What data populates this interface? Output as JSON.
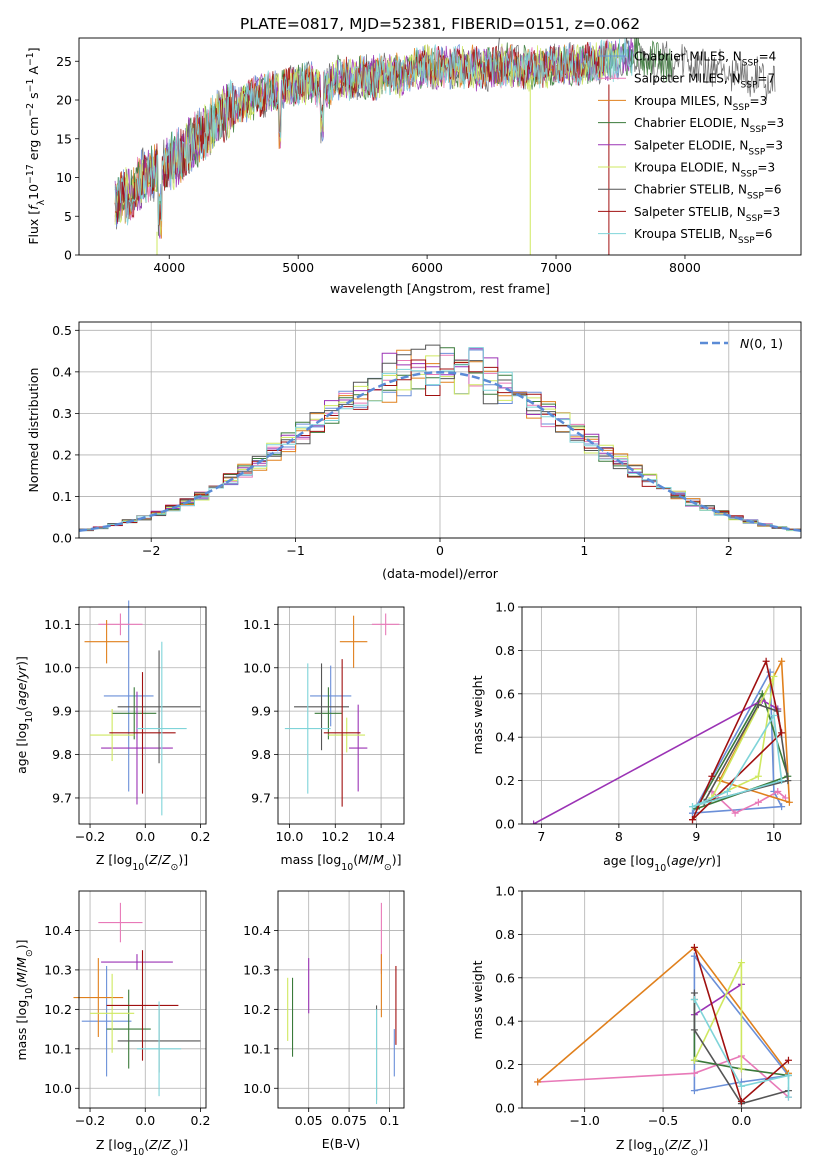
{
  "figure_title": "PLATE=0817, MJD=52381, FIBERID=0151, z=0.062",
  "colors": {
    "chabrier_miles": "#6a8fd8",
    "salpeter_miles": "#e879b8",
    "kroupa_miles": "#e0801d",
    "chabrier_elodie": "#3a7a3a",
    "salpeter_elodie": "#9b33b5",
    "kroupa_elodie": "#cfe860",
    "chabrier_stelib": "#555555",
    "salpeter_stelib": "#a01010",
    "kroupa_stelib": "#7fd4d9",
    "normal": "#5b8bd6"
  },
  "chart_data": [
    {
      "id": "spectrum",
      "type": "line",
      "title": "PLATE=0817, MJD=52381, FIBERID=0151, z=0.062",
      "xlabel": "wavelength [Angstrom, rest frame]",
      "ylabel": "Flux [fλ10⁻¹⁷ erg cm⁻² s⁻¹ A⁻¹]",
      "xlim": [
        3300,
        8900
      ],
      "ylim": [
        0,
        28
      ],
      "xticks": [
        4000,
        5000,
        6000,
        7000,
        8000
      ],
      "yticks": [
        0,
        5,
        10,
        15,
        20,
        25
      ],
      "x": [
        3600,
        3700,
        3800,
        3900,
        4000,
        4100,
        4200,
        4300,
        4400,
        4500,
        4600,
        4700,
        4800,
        4900,
        5000,
        5100,
        5200,
        5300,
        5400,
        5500,
        5600,
        5700,
        5800,
        5900,
        6000,
        6100,
        6200,
        6300,
        6400,
        6500,
        6600,
        6700,
        6800,
        6900,
        7000,
        7100,
        7200,
        7300,
        7400,
        7500,
        7600,
        7700,
        7800,
        7900,
        8000,
        8100,
        8200,
        8300,
        8400,
        8500,
        8600,
        8700
      ],
      "y": [
        7,
        8,
        10,
        11,
        12,
        13,
        15,
        16,
        18,
        19,
        20,
        20.5,
        21,
        21.5,
        22,
        22.5,
        21,
        23,
        22.5,
        23,
        22.8,
        23.5,
        23,
        24,
        24.5,
        24,
        24.2,
        24.3,
        24,
        24,
        24.5,
        24.3,
        24,
        24.3,
        24.5,
        24.7,
        24.5,
        25,
        25,
        25.5,
        25.8,
        25.2,
        25,
        24.5,
        24.5,
        24.3,
        24,
        23.8,
        23.5,
        23,
        22.8,
        22.5
      ],
      "legend": [
        {
          "label": "Chabrier MILES, N_SSP=4",
          "text": "Chabrier MILES, N",
          "sub": "SSP",
          "tail": "=4",
          "color": "#6a8fd8"
        },
        {
          "label": "Salpeter MILES, N_SSP=7",
          "text": "Salpeter MILES, N",
          "sub": "SSP",
          "tail": "=7",
          "color": "#e879b8"
        },
        {
          "label": "Kroupa MILES, N_SSP=3",
          "text": "Kroupa MILES, N",
          "sub": "SSP",
          "tail": "=3",
          "color": "#e0801d"
        },
        {
          "label": "Chabrier ELODIE, N_SSP=3",
          "text": "Chabrier ELODIE, N",
          "sub": "SSP",
          "tail": "=3",
          "color": "#3a7a3a"
        },
        {
          "label": "Salpeter ELODIE, N_SSP=3",
          "text": "Salpeter ELODIE, N",
          "sub": "SSP",
          "tail": "=3",
          "color": "#9b33b5"
        },
        {
          "label": "Kroupa ELODIE, N_SSP=3",
          "text": "Kroupa ELODIE, N",
          "sub": "SSP",
          "tail": "=3",
          "color": "#cfe860"
        },
        {
          "label": "Chabrier STELIB, N_SSP=6",
          "text": "Chabrier STELIB, N",
          "sub": "SSP",
          "tail": "=6",
          "color": "#555555"
        },
        {
          "label": "Salpeter STELIB, N_SSP=3",
          "text": "Salpeter STELIB, N",
          "sub": "SSP",
          "tail": "=3",
          "color": "#a01010"
        },
        {
          "label": "Kroupa STELIB, N_SSP=6",
          "text": "Kroupa STELIB, N",
          "sub": "SSP",
          "tail": "=6",
          "color": "#7fd4d9"
        }
      ]
    },
    {
      "id": "residuals",
      "type": "bar",
      "xlabel": "(data-model)/error",
      "ylabel": "Normed distribution",
      "xlim": [
        -2.5,
        2.5
      ],
      "ylim": [
        0,
        0.52
      ],
      "xticks": [
        -2,
        -1,
        0,
        1,
        2
      ],
      "yticks": [
        0.0,
        0.1,
        0.2,
        0.3,
        0.4,
        0.5
      ],
      "bin_width": 0.1,
      "bin_start": -2.5,
      "legend_label": "N(0,1)",
      "series_colors": [
        "#6a8fd8",
        "#e879b8",
        "#e0801d",
        "#3a7a3a",
        "#9b33b5",
        "#cfe860",
        "#555555",
        "#a01010",
        "#7fd4d9"
      ]
    },
    {
      "id": "age_vs_Z",
      "type": "scatter",
      "xlabel": "Z [log10(Z/Z⊙)]",
      "ylabel": "age [log10(age/yr)]",
      "xlim": [
        -0.24,
        0.22
      ],
      "ylim": [
        9.64,
        10.14
      ],
      "xticks": [
        -0.2,
        0.0,
        0.2
      ],
      "yticks": [
        9.7,
        9.8,
        9.9,
        10.0,
        10.1
      ],
      "points": [
        {
          "x": -0.06,
          "y": 9.935,
          "xerr": 0.09,
          "yerr": 0.22,
          "color": "#6a8fd8"
        },
        {
          "x": -0.09,
          "y": 10.1,
          "xerr": 0.08,
          "yerr": 0.025,
          "color": "#e879b8"
        },
        {
          "x": -0.14,
          "y": 10.06,
          "xerr": 0.08,
          "yerr": 0.05,
          "color": "#e0801d"
        },
        {
          "x": -0.04,
          "y": 9.895,
          "xerr": 0.08,
          "yerr": 0.06,
          "color": "#3a7a3a"
        },
        {
          "x": -0.03,
          "y": 9.815,
          "xerr": 0.13,
          "yerr": 0.13,
          "color": "#9b33b5"
        },
        {
          "x": -0.12,
          "y": 9.845,
          "xerr": 0.08,
          "yerr": 0.06,
          "color": "#cfe860"
        },
        {
          "x": 0.05,
          "y": 9.91,
          "xerr": 0.15,
          "yerr": 0.13,
          "color": "#555555"
        },
        {
          "x": -0.01,
          "y": 9.85,
          "xerr": 0.12,
          "yerr": 0.14,
          "color": "#a01010"
        },
        {
          "x": 0.06,
          "y": 9.86,
          "xerr": 0.09,
          "yerr": 0.2,
          "color": "#7fd4d9"
        }
      ]
    },
    {
      "id": "age_vs_mass",
      "type": "scatter",
      "xlabel": "mass [log10(M/M⊙)]",
      "ylabel": "",
      "xlim": [
        9.95,
        10.5
      ],
      "ylim": [
        9.64,
        10.14
      ],
      "xticks": [
        10.0,
        10.2,
        10.4
      ],
      "yticks": [
        9.7,
        9.8,
        9.9,
        10.0,
        10.1
      ],
      "points": [
        {
          "x": 10.18,
          "y": 9.935,
          "xerr": 0.09,
          "yerr": 0.07,
          "color": "#6a8fd8"
        },
        {
          "x": 10.42,
          "y": 10.1,
          "xerr": 0.06,
          "yerr": 0.025,
          "color": "#e879b8"
        },
        {
          "x": 10.28,
          "y": 10.06,
          "xerr": 0.06,
          "yerr": 0.06,
          "color": "#e0801d"
        },
        {
          "x": 10.17,
          "y": 9.895,
          "xerr": 0.06,
          "yerr": 0.06,
          "color": "#3a7a3a"
        },
        {
          "x": 10.3,
          "y": 9.815,
          "xerr": 0.04,
          "yerr": 0.1,
          "color": "#9b33b5"
        },
        {
          "x": 10.25,
          "y": 9.845,
          "xerr": 0.08,
          "yerr": 0.04,
          "color": "#cfe860"
        },
        {
          "x": 10.14,
          "y": 9.91,
          "xerr": 0.12,
          "yerr": 0.1,
          "color": "#555555"
        },
        {
          "x": 10.23,
          "y": 9.85,
          "xerr": 0.08,
          "yerr": 0.17,
          "color": "#a01010"
        },
        {
          "x": 10.08,
          "y": 9.86,
          "xerr": 0.1,
          "yerr": 0.15,
          "color": "#7fd4d9"
        }
      ]
    },
    {
      "id": "weight_vs_age",
      "type": "line",
      "xlabel": "age [log10(age/yr)]",
      "ylabel": "mass weight",
      "xlim": [
        6.75,
        10.35
      ],
      "ylim": [
        0,
        1.0
      ],
      "xticks": [
        7,
        8,
        9,
        10
      ],
      "yticks": [
        0.0,
        0.2,
        0.4,
        0.6,
        0.8,
        1.0
      ],
      "series": [
        {
          "color": "#6a8fd8",
          "x": [
            8.95,
            9.95,
            10.0,
            10.1,
            8.95
          ],
          "y": [
            0.05,
            0.7,
            0.15,
            0.08,
            0.05
          ]
        },
        {
          "color": "#e879b8",
          "x": [
            9.2,
            9.5,
            9.8,
            10.05,
            10.15
          ],
          "y": [
            0.15,
            0.05,
            0.1,
            0.15,
            0.12
          ]
        },
        {
          "color": "#e0801d",
          "x": [
            9.3,
            10.1,
            10.2,
            9.3
          ],
          "y": [
            0.2,
            0.75,
            0.1,
            0.2
          ]
        },
        {
          "color": "#3a7a3a",
          "x": [
            9.0,
            9.85,
            10.18,
            9.0
          ],
          "y": [
            0.07,
            0.6,
            0.22,
            0.07
          ]
        },
        {
          "color": "#9b33b5",
          "x": [
            6.9,
            9.85,
            10.05
          ],
          "y": [
            0.0,
            0.57,
            0.53
          ]
        },
        {
          "color": "#cfe860",
          "x": [
            9.2,
            9.8,
            10.0,
            9.2
          ],
          "y": [
            0.12,
            0.22,
            0.68,
            0.12
          ]
        },
        {
          "color": "#555555",
          "x": [
            9.1,
            9.8,
            10.05,
            10.18,
            9.1
          ],
          "y": [
            0.1,
            0.55,
            0.52,
            0.2,
            0.1
          ]
        },
        {
          "color": "#a01010",
          "x": [
            8.95,
            9.2,
            9.9,
            10.1,
            8.95
          ],
          "y": [
            0.02,
            0.22,
            0.75,
            0.42,
            0.02
          ]
        },
        {
          "color": "#7fd4d9",
          "x": [
            8.95,
            9.4,
            10.0,
            10.1,
            8.95
          ],
          "y": [
            0.08,
            0.15,
            0.5,
            0.2,
            0.08
          ]
        }
      ]
    },
    {
      "id": "mass_vs_Z",
      "type": "scatter",
      "xlabel": "Z [log10(Z/Z⊙)]",
      "ylabel": "mass [log10(M/M⊙)]",
      "xlim": [
        -0.24,
        0.22
      ],
      "ylim": [
        9.95,
        10.5
      ],
      "xticks": [
        -0.2,
        0.0,
        0.2
      ],
      "yticks": [
        10.0,
        10.1,
        10.2,
        10.3,
        10.4
      ],
      "points": [
        {
          "x": -0.14,
          "y": 10.17,
          "xerr": 0.09,
          "yerr": 0.14,
          "color": "#6a8fd8"
        },
        {
          "x": -0.09,
          "y": 10.42,
          "xerr": 0.08,
          "yerr": 0.05,
          "color": "#e879b8"
        },
        {
          "x": -0.17,
          "y": 10.23,
          "xerr": 0.09,
          "yerr": 0.1,
          "color": "#e0801d"
        },
        {
          "x": -0.06,
          "y": 10.15,
          "xerr": 0.08,
          "yerr": 0.1,
          "color": "#3a7a3a"
        },
        {
          "x": -0.03,
          "y": 10.32,
          "xerr": 0.13,
          "yerr": 0.02,
          "color": "#9b33b5"
        },
        {
          "x": -0.12,
          "y": 10.19,
          "xerr": 0.08,
          "yerr": 0.1,
          "color": "#cfe860"
        },
        {
          "x": 0.05,
          "y": 10.12,
          "xerr": 0.15,
          "yerr": 0.08,
          "color": "#555555"
        },
        {
          "x": -0.01,
          "y": 10.21,
          "xerr": 0.13,
          "yerr": 0.14,
          "color": "#a01010"
        },
        {
          "x": 0.05,
          "y": 10.1,
          "xerr": 0.08,
          "yerr": 0.12,
          "color": "#7fd4d9"
        }
      ]
    },
    {
      "id": "mass_vs_ebv",
      "type": "scatter",
      "xlabel": "E(B-V)",
      "ylabel": "",
      "xlim": [
        0.031,
        0.109
      ],
      "ylim": [
        9.95,
        10.5
      ],
      "xticks": [
        0.05,
        0.075,
        0.1
      ],
      "yticks": [
        10.0,
        10.1,
        10.2,
        10.3,
        10.4
      ],
      "points": [
        {
          "x": 0.103,
          "y": 10.09,
          "xerr": 0,
          "yerr": 0.06,
          "color": "#6a8fd8"
        },
        {
          "x": 0.095,
          "y": 10.38,
          "xerr": 0,
          "yerr": 0.09,
          "color": "#e879b8"
        },
        {
          "x": 0.095,
          "y": 10.26,
          "xerr": 0,
          "yerr": 0.08,
          "color": "#e0801d"
        },
        {
          "x": 0.04,
          "y": 10.18,
          "xerr": 0,
          "yerr": 0.1,
          "color": "#3a7a3a"
        },
        {
          "x": 0.05,
          "y": 10.26,
          "xerr": 0,
          "yerr": 0.07,
          "color": "#9b33b5"
        },
        {
          "x": 0.037,
          "y": 10.2,
          "xerr": 0,
          "yerr": 0.08,
          "color": "#cfe860"
        },
        {
          "x": 0.092,
          "y": 10.09,
          "xerr": 0,
          "yerr": 0.12,
          "color": "#555555"
        },
        {
          "x": 0.104,
          "y": 10.21,
          "xerr": 0,
          "yerr": 0.1,
          "color": "#a01010"
        },
        {
          "x": 0.092,
          "y": 10.08,
          "xerr": 0,
          "yerr": 0.12,
          "color": "#7fd4d9"
        }
      ]
    },
    {
      "id": "weight_vs_Z",
      "type": "line",
      "xlabel": "Z [log10(Z/Z⊙)]",
      "ylabel": "mass weight",
      "xlim": [
        -1.4,
        0.38
      ],
      "ylim": [
        0,
        1.0
      ],
      "xticks": [
        -1.0,
        -0.5,
        0.0
      ],
      "yticks": [
        0.0,
        0.2,
        0.4,
        0.6,
        0.8,
        1.0
      ],
      "series": [
        {
          "color": "#6a8fd8",
          "x": [
            -0.3,
            -0.3,
            0.0,
            0.3,
            -0.3
          ],
          "y": [
            0.7,
            0.08,
            0.12,
            0.15,
            0.7
          ]
        },
        {
          "color": "#e879b8",
          "x": [
            -1.3,
            -0.3,
            0.0,
            0.3
          ],
          "y": [
            0.12,
            0.16,
            0.24,
            0.05
          ]
        },
        {
          "color": "#e0801d",
          "x": [
            -1.3,
            -0.3,
            0.3
          ],
          "y": [
            0.12,
            0.74,
            0.16
          ]
        },
        {
          "color": "#3a7a3a",
          "x": [
            -0.3,
            -0.3,
            0.0,
            0.3
          ],
          "y": [
            0.5,
            0.22,
            0.18,
            0.15
          ]
        },
        {
          "color": "#9b33b5",
          "x": [
            -0.3,
            0.0
          ],
          "y": [
            0.43,
            0.57
          ]
        },
        {
          "color": "#cfe860",
          "x": [
            -0.3,
            0.0,
            0.0
          ],
          "y": [
            0.22,
            0.67,
            0.18
          ]
        },
        {
          "color": "#555555",
          "x": [
            -0.3,
            -0.3,
            0.0,
            0.3
          ],
          "y": [
            0.53,
            0.36,
            0.02,
            0.08
          ]
        },
        {
          "color": "#a01010",
          "x": [
            -0.3,
            0.0,
            0.3
          ],
          "y": [
            0.74,
            0.03,
            0.22
          ]
        },
        {
          "color": "#7fd4d9",
          "x": [
            -0.3,
            0.0,
            0.3,
            0.3
          ],
          "y": [
            0.5,
            0.1,
            0.15,
            0.05
          ]
        }
      ]
    }
  ]
}
